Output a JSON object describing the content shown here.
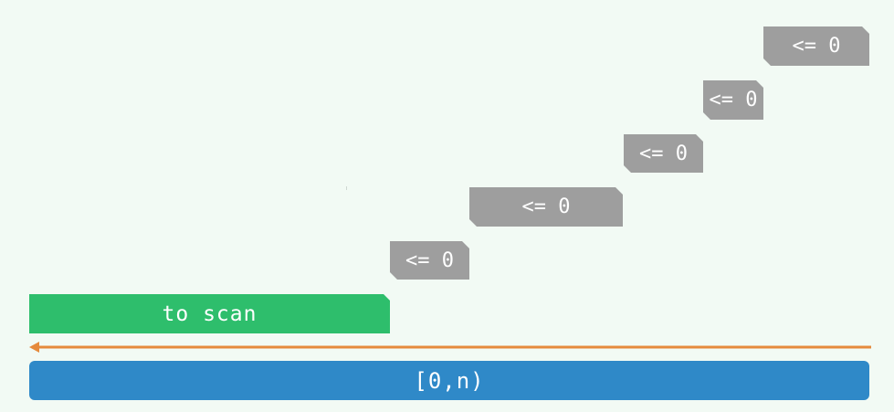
{
  "diagram": {
    "steps": [
      {
        "label": "<= 0"
      },
      {
        "label": "<= 0"
      },
      {
        "label": "<= 0"
      },
      {
        "label": "<= 0"
      },
      {
        "label": "<= 0"
      }
    ],
    "scan_label": "to scan",
    "range_label": "[0,n)",
    "colors": {
      "background": "#f2faf4",
      "step": "#9e9e9e",
      "scan": "#2ebe6c",
      "range": "#2f89c8",
      "arrow": "#e58a3c"
    }
  }
}
